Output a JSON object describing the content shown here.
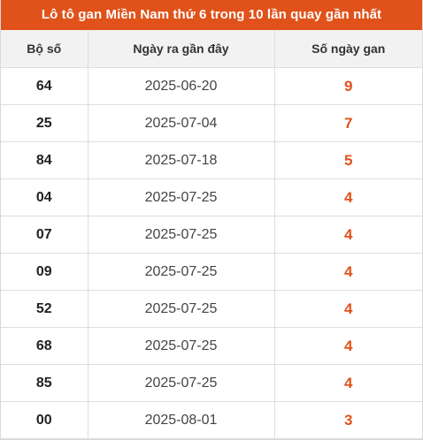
{
  "title": "Lô tô gan Miền Nam thứ 6 trong 10 lần quay gần nhất",
  "colors": {
    "header_bg": "#e0521a",
    "accent": "#e0521a"
  },
  "columns": [
    "Bộ số",
    "Ngày ra gần đây",
    "Số ngày gan"
  ],
  "rows": [
    {
      "number": "64",
      "date": "2025-06-20",
      "days": "9"
    },
    {
      "number": "25",
      "date": "2025-07-04",
      "days": "7"
    },
    {
      "number": "84",
      "date": "2025-07-18",
      "days": "5"
    },
    {
      "number": "04",
      "date": "2025-07-25",
      "days": "4"
    },
    {
      "number": "07",
      "date": "2025-07-25",
      "days": "4"
    },
    {
      "number": "09",
      "date": "2025-07-25",
      "days": "4"
    },
    {
      "number": "52",
      "date": "2025-07-25",
      "days": "4"
    },
    {
      "number": "68",
      "date": "2025-07-25",
      "days": "4"
    },
    {
      "number": "85",
      "date": "2025-07-25",
      "days": "4"
    },
    {
      "number": "00",
      "date": "2025-08-01",
      "days": "3"
    }
  ]
}
